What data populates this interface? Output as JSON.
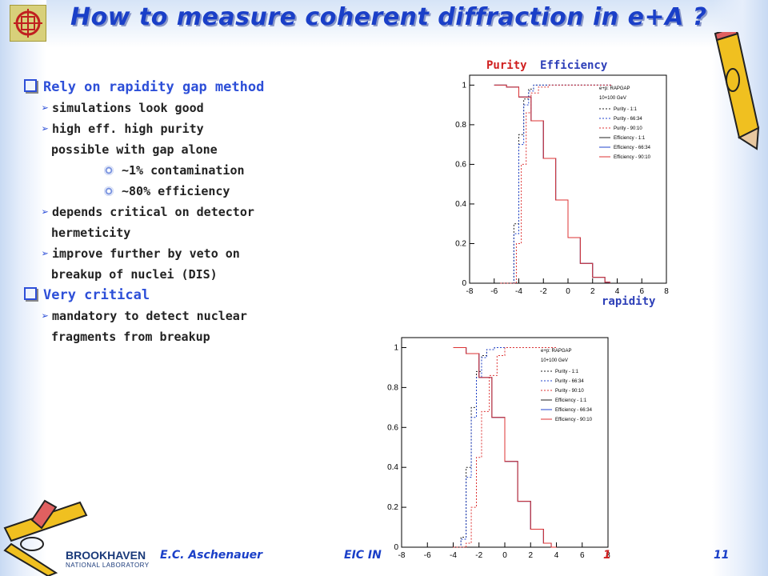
{
  "slide": {
    "title": "How to measure coherent diffraction in e+A ?",
    "bullets": [
      {
        "text": "Rely on rapidity gap method"
      },
      {
        "text": "simulations look good"
      },
      {
        "text": "high eff. high purity"
      },
      {
        "text": "possible with gap alone"
      },
      {
        "text": "~1% contamination"
      },
      {
        "text": "~80% efficiency"
      },
      {
        "text": "depends critical on detector"
      },
      {
        "text": "hermeticity"
      },
      {
        "text": "improve further by veto on"
      },
      {
        "text": "breakup of nuclei (DIS)"
      },
      {
        "text": "Very critical"
      },
      {
        "text": "mandatory to detect nuclear"
      },
      {
        "text": "fragments from breakup"
      }
    ],
    "header_labels": {
      "purity": "Purity",
      "efficiency": "Efficiency"
    },
    "rapidity_label": "rapidity",
    "footer": {
      "author": "E.C. Aschenauer",
      "conference": "EIC IN",
      "mid": "1",
      "page": "11",
      "lab": "BROOKHAVEN",
      "lab_sub": "NATIONAL LABORATORY"
    }
  },
  "chart_data": [
    {
      "type": "line",
      "xlim": [
        -8,
        8
      ],
      "ylim": [
        0,
        1.05
      ],
      "xticks": [
        "-8",
        "-6",
        "-4",
        "-2",
        "0",
        "2",
        "4",
        "6",
        "8"
      ],
      "yticks": [
        "0",
        "0.2",
        "0.4",
        "0.6",
        "0.8",
        "1"
      ],
      "legend_position": "top-right",
      "legend_title": [
        "e+p: RAPGAP",
        "10+100 GeV"
      ],
      "series": [
        {
          "name": "Purity - 1:1",
          "style": "dotted",
          "color": "#222222",
          "x": [
            -5.5,
            -4.8,
            -4.4,
            -4.0,
            -3.6,
            -3.2,
            -2.8,
            -2.0,
            3.5
          ],
          "y": [
            0,
            0,
            0.3,
            0.75,
            0.93,
            0.98,
            1,
            1,
            1
          ]
        },
        {
          "name": "Purity - 66:34",
          "style": "dotted",
          "color": "#2244cc",
          "x": [
            -5.5,
            -4.8,
            -4.4,
            -4.0,
            -3.6,
            -3.2,
            -2.8,
            -2.0,
            3.5
          ],
          "y": [
            0,
            0,
            0.25,
            0.7,
            0.9,
            0.97,
            1,
            1,
            1
          ]
        },
        {
          "name": "Purity - 90:10",
          "style": "dotted",
          "color": "#dd3333",
          "x": [
            -5.5,
            -4.6,
            -4.2,
            -3.8,
            -3.4,
            -3.0,
            -2.4,
            -1.6,
            3.5
          ],
          "y": [
            0,
            0,
            0.2,
            0.6,
            0.86,
            0.96,
            0.99,
            1,
            1
          ]
        },
        {
          "name": "Efficiency - 1:1",
          "style": "solid",
          "color": "#222222",
          "x": [
            -6.0,
            -5.0,
            -4.0,
            -3.0,
            -2.0,
            -1.0,
            0.0,
            1.0,
            2.0,
            3.0,
            3.4
          ],
          "y": [
            1,
            0.99,
            0.94,
            0.82,
            0.63,
            0.42,
            0.23,
            0.1,
            0.03,
            0.005,
            0
          ]
        },
        {
          "name": "Efficiency - 66:34",
          "style": "solid",
          "color": "#2244cc",
          "x": [
            -6.0,
            -5.0,
            -4.0,
            -3.0,
            -2.0,
            -1.0,
            0.0,
            1.0,
            2.0,
            3.0,
            3.4
          ],
          "y": [
            1,
            0.99,
            0.94,
            0.82,
            0.63,
            0.42,
            0.23,
            0.1,
            0.03,
            0.005,
            0
          ]
        },
        {
          "name": "Efficiency - 90:10",
          "style": "solid",
          "color": "#dd3333",
          "x": [
            -6.0,
            -5.0,
            -4.0,
            -3.0,
            -2.0,
            -1.0,
            0.0,
            1.0,
            2.0,
            3.0,
            3.4
          ],
          "y": [
            1,
            0.99,
            0.94,
            0.82,
            0.63,
            0.42,
            0.23,
            0.1,
            0.03,
            0.005,
            0
          ]
        }
      ]
    },
    {
      "type": "line",
      "xlim": [
        -8,
        8
      ],
      "ylim": [
        0,
        1.05
      ],
      "xticks": [
        "-8",
        "-6",
        "-4",
        "-2",
        "0",
        "2",
        "4",
        "6",
        "8"
      ],
      "yticks": [
        "0",
        "0.2",
        "0.4",
        "0.6",
        "0.8",
        "1"
      ],
      "legend_position": "top-right",
      "legend_title": [
        "e+p: RAPGAP",
        "10+100 GeV"
      ],
      "series": [
        {
          "name": "Purity - 1:1",
          "style": "dotted",
          "color": "#222222",
          "x": [
            -4.0,
            -3.4,
            -3.0,
            -2.6,
            -2.2,
            -1.8,
            -1.4,
            -0.8,
            4.0
          ],
          "y": [
            0,
            0.05,
            0.4,
            0.7,
            0.88,
            0.96,
            0.99,
            1,
            1
          ]
        },
        {
          "name": "Purity - 66:34",
          "style": "dotted",
          "color": "#2244cc",
          "x": [
            -4.0,
            -3.4,
            -3.0,
            -2.6,
            -2.2,
            -1.8,
            -1.4,
            -0.8,
            4.0
          ],
          "y": [
            0,
            0.04,
            0.35,
            0.65,
            0.85,
            0.95,
            0.99,
            1,
            1
          ]
        },
        {
          "name": "Purity - 90:10",
          "style": "dotted",
          "color": "#dd3333",
          "x": [
            -4.0,
            -3.0,
            -2.6,
            -2.2,
            -1.8,
            -1.2,
            -0.6,
            0.0,
            4.0
          ],
          "y": [
            0,
            0.02,
            0.2,
            0.45,
            0.68,
            0.86,
            0.96,
            1,
            1
          ]
        },
        {
          "name": "Efficiency - 1:1",
          "style": "solid",
          "color": "#222222",
          "x": [
            -4.0,
            -3.0,
            -2.0,
            -1.0,
            0.0,
            1.0,
            2.0,
            3.0,
            3.6,
            4.0
          ],
          "y": [
            1,
            0.97,
            0.85,
            0.65,
            0.43,
            0.23,
            0.09,
            0.02,
            0,
            0
          ]
        },
        {
          "name": "Efficiency - 66:34",
          "style": "solid",
          "color": "#2244cc",
          "x": [
            -4.0,
            -3.0,
            -2.0,
            -1.0,
            0.0,
            1.0,
            2.0,
            3.0,
            3.6,
            4.0
          ],
          "y": [
            1,
            0.97,
            0.85,
            0.65,
            0.43,
            0.23,
            0.09,
            0.02,
            0,
            0
          ]
        },
        {
          "name": "Efficiency - 90:10",
          "style": "solid",
          "color": "#dd3333",
          "x": [
            -4.0,
            -3.0,
            -2.0,
            -1.0,
            0.0,
            1.0,
            2.0,
            3.0,
            3.6,
            4.0
          ],
          "y": [
            1,
            0.97,
            0.85,
            0.65,
            0.43,
            0.23,
            0.09,
            0.02,
            0,
            0
          ]
        }
      ]
    }
  ]
}
